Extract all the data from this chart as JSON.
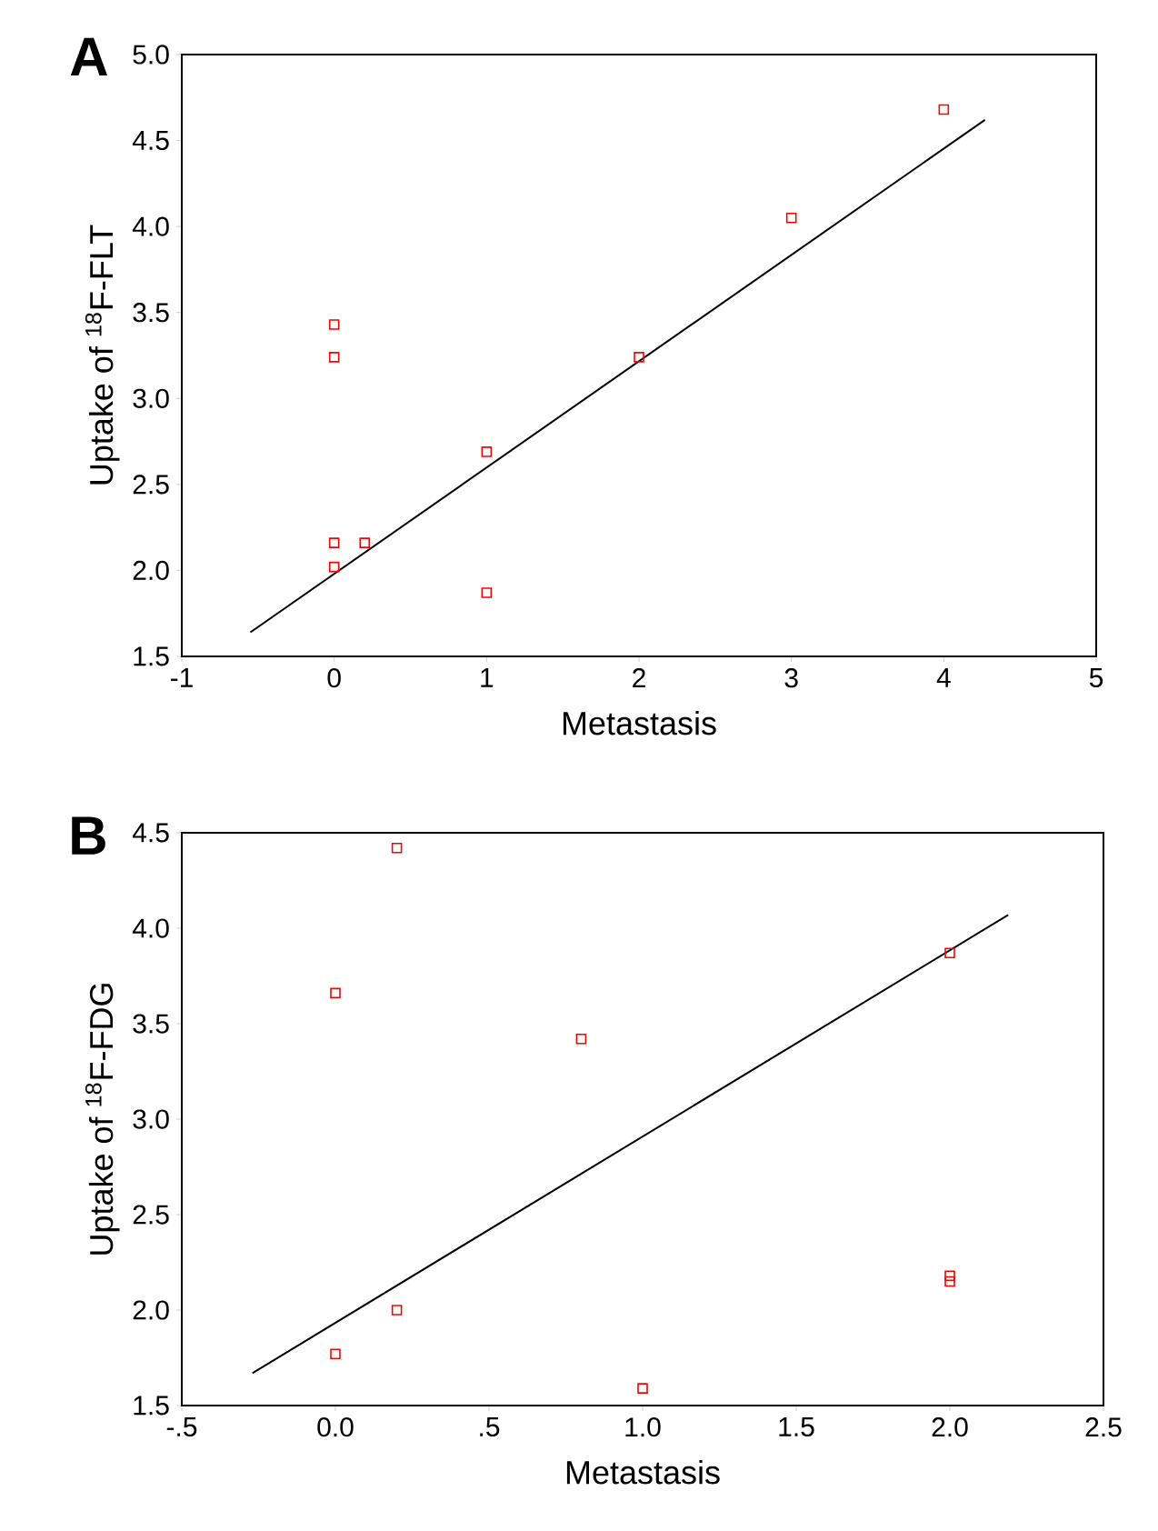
{
  "chart_data": [
    {
      "type": "scatter",
      "title": "A",
      "xlabel": "Metastasis",
      "ylabel": "Uptake of $^{18}$F-FLT",
      "grid": false,
      "xlim": [
        -1,
        5
      ],
      "ylim": [
        1.5,
        5.0
      ],
      "xticks": [
        -1,
        0,
        1,
        2,
        3,
        4,
        5
      ],
      "yticks": [
        {
          "value": 1.5,
          "label": "1.5"
        },
        {
          "value": 2.0,
          "label": "2.0"
        },
        {
          "value": 2.5,
          "label": "2.5"
        },
        {
          "value": 3.0,
          "label": "3.0"
        },
        {
          "value": 3.5,
          "label": "3.5"
        },
        {
          "value": 4.0,
          "label": "4.0"
        },
        {
          "value": 4.5,
          "label": "4.5"
        },
        {
          "value": 5.0,
          "label": "5.0"
        }
      ],
      "series": [
        {
          "marker": "square",
          "color": "#ff0000",
          "x": [
            0,
            0,
            0,
            0.2,
            0,
            1,
            1,
            2,
            3,
            4
          ],
          "values": [
            3.43,
            3.24,
            2.16,
            2.16,
            2.02,
            2.69,
            1.87,
            3.24,
            4.05,
            4.68
          ]
        },
        {
          "type": "line",
          "marker": "none",
          "color": "#000000",
          "x": [
            -0.55,
            4.27
          ],
          "values": [
            1.64,
            4.62
          ]
        }
      ]
    },
    {
      "type": "scatter",
      "title": "B",
      "xlabel": "Metastasis",
      "ylabel": "Uptake of $^{18}$F-FDG",
      "grid": false,
      "xlim": [
        -0.5,
        2.5
      ],
      "ylim": [
        1.5,
        4.5
      ],
      "xticks": [
        {
          "value": -0.5,
          "label": "-.5"
        },
        {
          "value": 0,
          "label": "0.0"
        },
        {
          "value": 0.5,
          "label": ".5"
        },
        {
          "value": 1.0,
          "label": "1.0"
        },
        {
          "value": 1.5,
          "label": "1.5"
        },
        {
          "value": 2.0,
          "label": "2.0"
        },
        {
          "value": 2.5,
          "label": "2.5"
        }
      ],
      "yticks": [
        {
          "value": 1.5,
          "label": "1.5"
        },
        {
          "value": 2.0,
          "label": "2.0"
        },
        {
          "value": 2.5,
          "label": "2.5"
        },
        {
          "value": 3.0,
          "label": "3.0"
        },
        {
          "value": 3.5,
          "label": "3.5"
        },
        {
          "value": 4.0,
          "label": "4.0"
        },
        {
          "value": 4.5,
          "label": "4.5"
        }
      ],
      "series": [
        {
          "marker": "square",
          "color": "#ff0000",
          "x": [
            0.2,
            0,
            0.8,
            2,
            0.2,
            0,
            1,
            2,
            2
          ],
          "values": [
            4.42,
            3.66,
            3.42,
            3.87,
            2.0,
            1.77,
            1.59,
            2.18,
            2.15
          ]
        },
        {
          "type": "line",
          "marker": "none",
          "color": "#000000",
          "x": [
            -0.27,
            2.19
          ],
          "values": [
            1.67,
            4.07
          ]
        }
      ]
    }
  ]
}
